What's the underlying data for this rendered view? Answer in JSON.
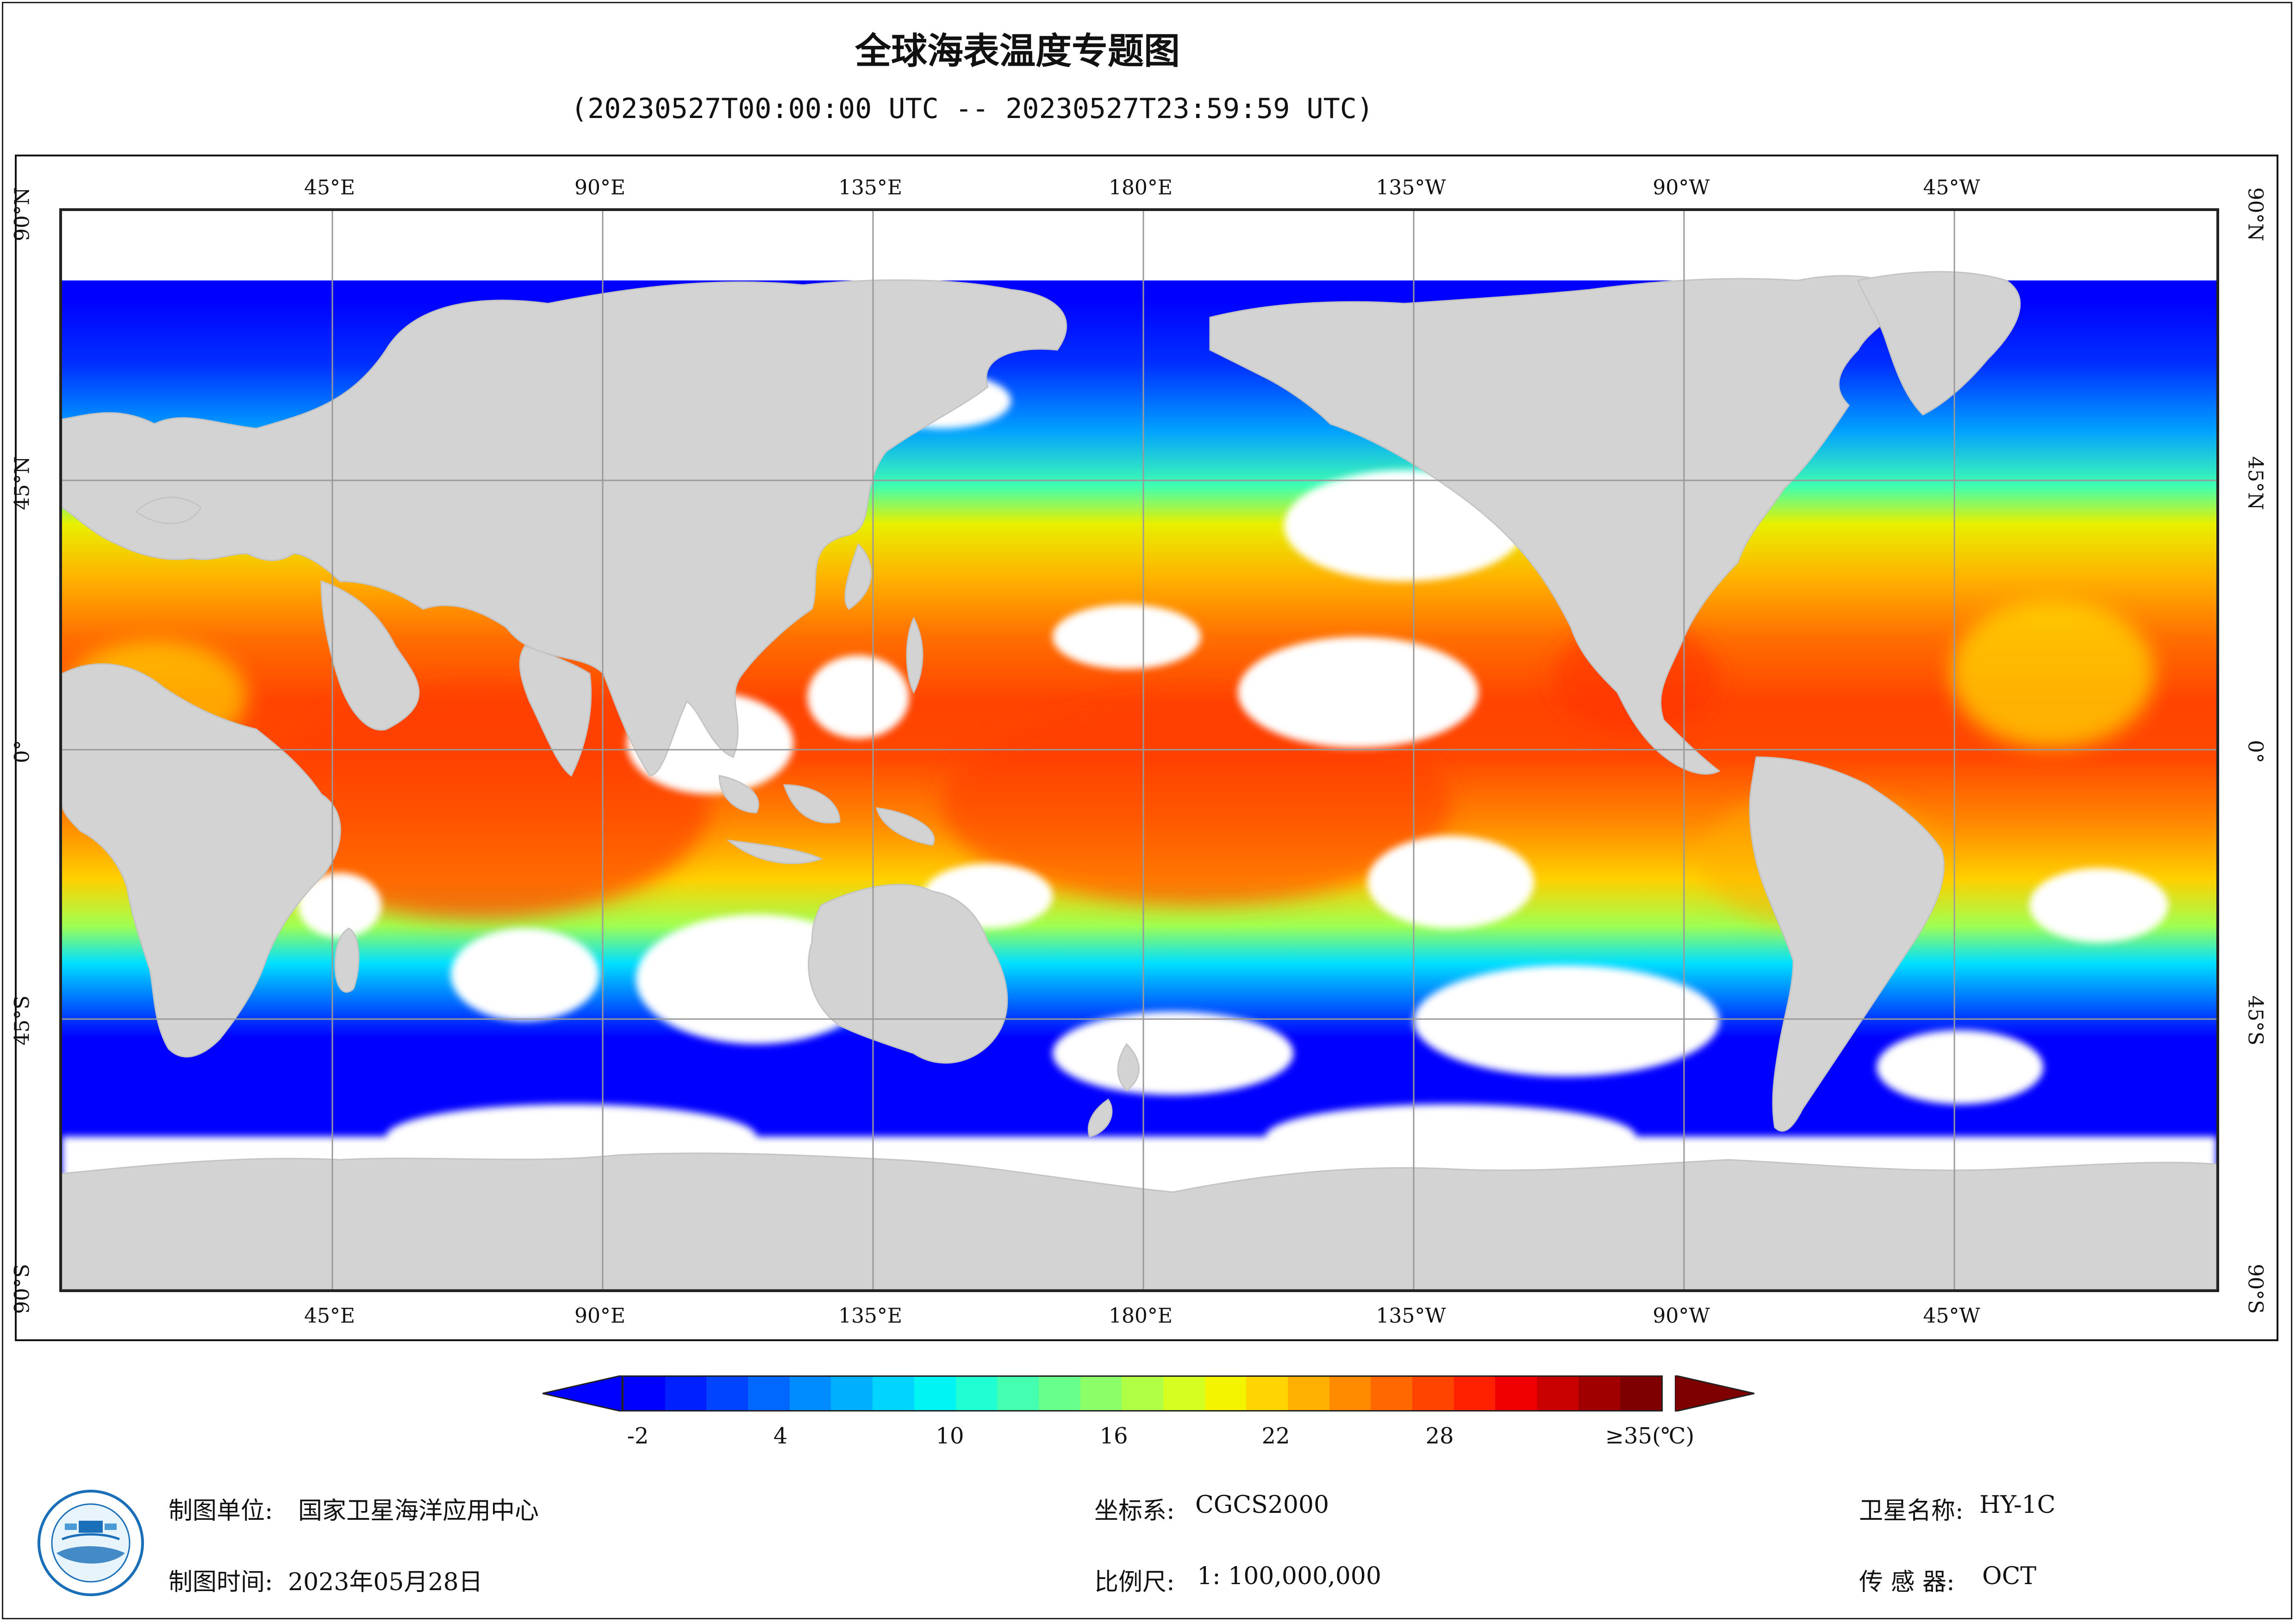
{
  "title": "全球海表温度专题图",
  "subtitle": "(20230527T00:00:00 UTC -- 20230527T23:59:59 UTC)",
  "map": {
    "projection": "Plate Carree centered on 180°",
    "lon_labels": [
      "45°E",
      "90°E",
      "135°E",
      "180°E",
      "135°W",
      "90°W",
      "45°W"
    ],
    "lat_labels": [
      "90°N",
      "45°N",
      "0°",
      "45°S",
      "90°S"
    ],
    "land_color": "#d3d3d3",
    "no_data_color": "#ffffff",
    "grid_color": "#9a9a9a"
  },
  "colorbar": {
    "ticks": [
      "-2",
      "4",
      "10",
      "16",
      "22",
      "28",
      "≥35(℃)"
    ],
    "under_color": "#0000ff",
    "over_color": "#7f0000",
    "min": -2,
    "max": 35,
    "colors": [
      "#0000ff",
      "#0020ff",
      "#0044ff",
      "#0068ff",
      "#008cff",
      "#00b0ff",
      "#00d4ff",
      "#00f4f4",
      "#20ffd4",
      "#44ffb0",
      "#68ff8c",
      "#8cff68",
      "#b0ff44",
      "#d4ff20",
      "#f4f400",
      "#ffd400",
      "#ffb000",
      "#ff8c00",
      "#ff6800",
      "#ff4400",
      "#ff2000",
      "#f00000",
      "#c80000",
      "#a00000",
      "#7f0000"
    ]
  },
  "footer": {
    "org_label": "制图单位:",
    "org_value": "国家卫星海洋应用中心",
    "time_label": "制图时间:",
    "time_value": "2023年05月28日",
    "crs_label": "坐标系:",
    "crs_value": "CGCS2000",
    "scale_label": "比例尺:",
    "scale_value": "1: 100,000,000",
    "sat_label": "卫星名称:",
    "sat_value": "HY-1C",
    "sensor_label": "传 感 器:",
    "sensor_value": "OCT"
  }
}
